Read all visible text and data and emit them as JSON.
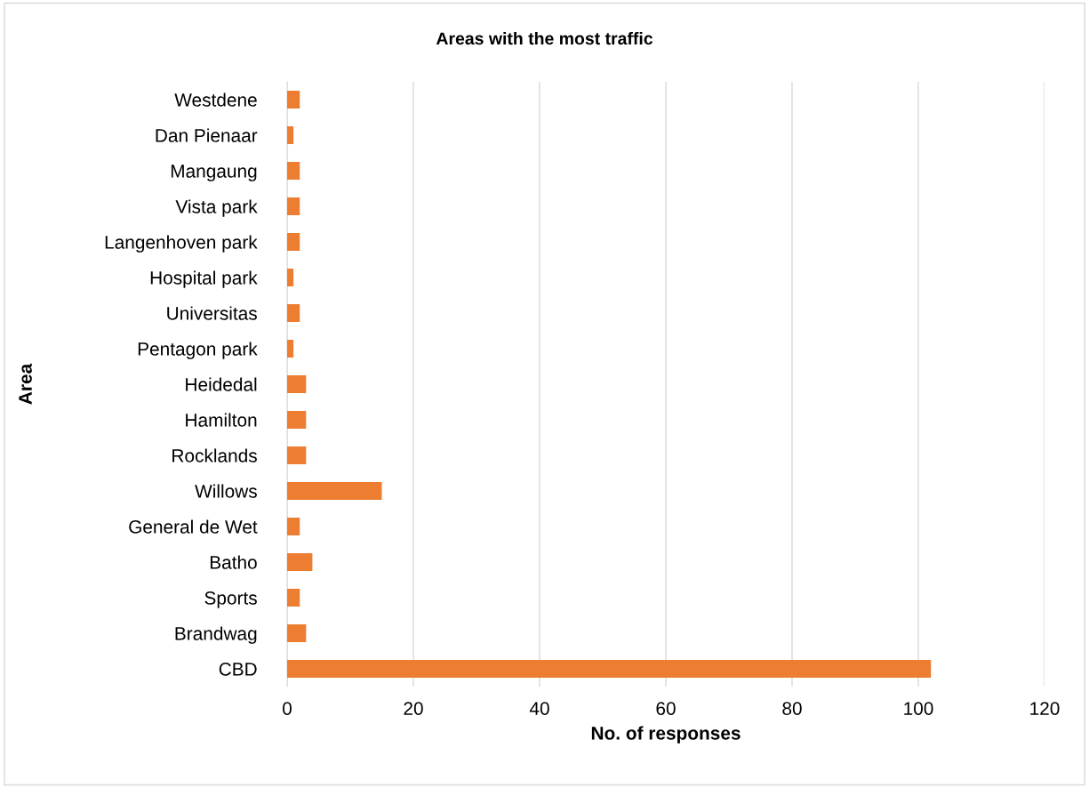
{
  "chart_data": {
    "type": "bar",
    "orientation": "horizontal",
    "title": "Areas with the most traffic",
    "xlabel": "No. of responses",
    "ylabel": "Area",
    "categories": [
      "Westdene",
      "Dan Pienaar",
      "Mangaung",
      "Vista park",
      "Langenhoven park",
      "Hospital park",
      "Universitas",
      "Pentagon park",
      "Heidedal",
      "Hamilton",
      "Rocklands",
      "Willows",
      "General de Wet",
      "Batho",
      "Sports",
      "Brandwag",
      "CBD"
    ],
    "values": [
      2,
      1,
      2,
      2,
      2,
      1,
      2,
      1,
      3,
      3,
      3,
      15,
      2,
      4,
      2,
      3,
      102
    ],
    "color": "#ed7d31",
    "xlim": [
      0,
      120
    ],
    "xticks": [
      0,
      20,
      40,
      60,
      80,
      100,
      120
    ],
    "grid": "x",
    "legend": false
  }
}
